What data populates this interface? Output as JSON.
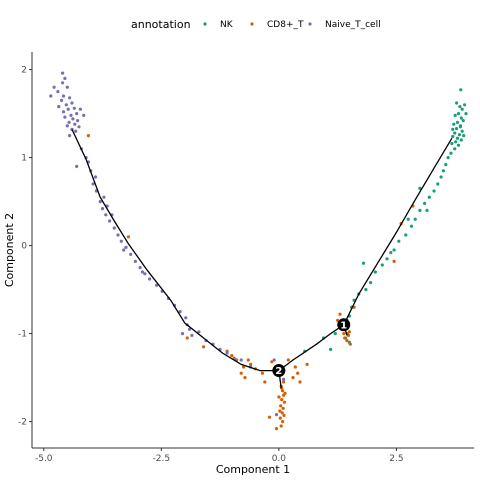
{
  "chart_data": {
    "type": "scatter",
    "xlabel": "Component 1",
    "ylabel": "Component 2",
    "xlim": [
      -5.25,
      4.15
    ],
    "ylim": [
      -2.3,
      2.2
    ],
    "x_ticks": [
      -5.0,
      -2.5,
      0.0,
      2.5
    ],
    "x_tick_labels": [
      "-5.0",
      "-2.5",
      "0.0",
      "2.5"
    ],
    "y_ticks": [
      -2,
      -1,
      0,
      1,
      2
    ],
    "y_tick_labels": [
      "-2",
      "-1",
      "0",
      "1",
      "2"
    ],
    "grid": false,
    "legend": {
      "title": "annotation",
      "placement": "top",
      "entries": [
        {
          "label": "NK",
          "color": "#1b9e77"
        },
        {
          "label": "CD8+_T",
          "color": "#d95f02"
        },
        {
          "label": "Naive_T_cell",
          "color": "#7570b3"
        }
      ]
    },
    "series": [
      {
        "name": "NK",
        "color": "#1b9e77",
        "points": [
          [
            3.78,
            1.62
          ],
          [
            3.85,
            1.58
          ],
          [
            3.9,
            1.55
          ],
          [
            3.82,
            1.5
          ],
          [
            3.75,
            1.48
          ],
          [
            3.88,
            1.45
          ],
          [
            3.92,
            1.42
          ],
          [
            3.8,
            1.4
          ],
          [
            3.72,
            1.38
          ],
          [
            3.86,
            1.36
          ],
          [
            3.78,
            1.33
          ],
          [
            3.9,
            1.3
          ],
          [
            3.74,
            1.28
          ],
          [
            3.84,
            1.26
          ],
          [
            3.7,
            1.24
          ],
          [
            3.8,
            1.22
          ],
          [
            3.88,
            1.2
          ],
          [
            3.76,
            1.18
          ],
          [
            3.68,
            1.16
          ],
          [
            3.82,
            1.14
          ],
          [
            3.74,
            1.1
          ],
          [
            3.86,
            1.35
          ],
          [
            3.95,
            1.6
          ],
          [
            3.98,
            1.5
          ],
          [
            3.87,
            1.77
          ],
          [
            3.7,
            1.32
          ],
          [
            3.93,
            1.25
          ],
          [
            3.66,
            1.05
          ],
          [
            3.6,
            1.0
          ],
          [
            3.55,
            0.92
          ],
          [
            3.5,
            0.85
          ],
          [
            3.45,
            0.78
          ],
          [
            3.38,
            0.7
          ],
          [
            3.3,
            0.62
          ],
          [
            3.2,
            0.55
          ],
          [
            3.1,
            0.48
          ],
          [
            3.0,
            0.4
          ],
          [
            2.9,
            0.3
          ],
          [
            2.82,
            0.22
          ],
          [
            2.7,
            0.12
          ],
          [
            2.55,
            0.05
          ],
          [
            2.45,
            -0.05
          ],
          [
            2.3,
            -0.15
          ],
          [
            2.2,
            -0.22
          ],
          [
            2.05,
            -0.3
          ],
          [
            1.95,
            -0.42
          ],
          [
            1.85,
            -0.5
          ],
          [
            1.7,
            -0.55
          ],
          [
            1.6,
            -0.62
          ],
          [
            1.55,
            -0.7
          ],
          [
            1.5,
            -0.8
          ],
          [
            1.45,
            -0.85
          ],
          [
            1.4,
            -0.92
          ],
          [
            1.46,
            -1.0
          ],
          [
            1.42,
            -1.05
          ],
          [
            1.5,
            -1.1
          ],
          [
            1.2,
            -1.0
          ],
          [
            0.95,
            -1.05
          ],
          [
            0.55,
            -1.2
          ],
          [
            1.1,
            -1.18
          ],
          [
            3.0,
            0.65
          ],
          [
            2.75,
            0.3
          ],
          [
            2.38,
            -0.08
          ],
          [
            1.8,
            -0.2
          ],
          [
            3.15,
            0.4
          ]
        ]
      },
      {
        "name": "CD8+_T",
        "color": "#d95f02",
        "points": [
          [
            0.05,
            -1.6
          ],
          [
            0.08,
            -1.65
          ],
          [
            0.1,
            -1.7
          ],
          [
            0.06,
            -1.75
          ],
          [
            0.12,
            -1.78
          ],
          [
            0.04,
            -1.82
          ],
          [
            0.09,
            -1.85
          ],
          [
            0.02,
            -1.88
          ],
          [
            0.07,
            -1.9
          ],
          [
            0.11,
            -1.93
          ],
          [
            0.03,
            -1.96
          ],
          [
            0.08,
            -2.0
          ],
          [
            0.05,
            -2.05
          ],
          [
            -0.05,
            -2.08
          ],
          [
            0.1,
            -1.55
          ],
          [
            0.13,
            -1.68
          ],
          [
            0.0,
            -1.72
          ],
          [
            0.06,
            -1.62
          ],
          [
            -0.35,
            -1.45
          ],
          [
            -0.5,
            -1.4
          ],
          [
            -0.6,
            -1.35
          ],
          [
            -0.75,
            -1.38
          ],
          [
            -0.8,
            -1.45
          ],
          [
            -0.72,
            -1.5
          ],
          [
            -0.65,
            -1.3
          ],
          [
            -0.9,
            -1.3
          ],
          [
            -1.0,
            -1.25
          ],
          [
            -1.1,
            -1.2
          ],
          [
            -0.3,
            -1.55
          ],
          [
            0.3,
            -1.5
          ],
          [
            0.4,
            -1.45
          ],
          [
            0.45,
            -1.55
          ],
          [
            0.35,
            -1.38
          ],
          [
            0.2,
            -1.3
          ],
          [
            -0.15,
            -1.32
          ],
          [
            0.6,
            -1.35
          ],
          [
            1.42,
            -0.95
          ],
          [
            1.48,
            -1.02
          ],
          [
            1.4,
            -1.05
          ],
          [
            1.5,
            -0.98
          ],
          [
            1.45,
            -1.08
          ],
          [
            1.38,
            -1.0
          ],
          [
            1.52,
            -1.12
          ],
          [
            1.25,
            -0.85
          ],
          [
            1.3,
            -0.78
          ],
          [
            1.6,
            -0.7
          ],
          [
            2.6,
            0.25
          ],
          [
            2.85,
            0.45
          ],
          [
            2.45,
            -0.18
          ],
          [
            -1.95,
            -1.05
          ],
          [
            -1.6,
            -1.15
          ],
          [
            -3.2,
            0.1
          ],
          [
            -4.05,
            1.25
          ],
          [
            -0.2,
            -1.95
          ]
        ]
      },
      {
        "name": "Naive_T_cell",
        "color": "#7570b3",
        "points": [
          [
            -4.55,
            1.9
          ],
          [
            -4.6,
            1.85
          ],
          [
            -4.5,
            1.8
          ],
          [
            -4.7,
            1.75
          ],
          [
            -4.58,
            1.7
          ],
          [
            -4.45,
            1.68
          ],
          [
            -4.62,
            1.65
          ],
          [
            -4.4,
            1.62
          ],
          [
            -4.52,
            1.6
          ],
          [
            -4.68,
            1.58
          ],
          [
            -4.35,
            1.56
          ],
          [
            -4.48,
            1.55
          ],
          [
            -4.58,
            1.52
          ],
          [
            -4.3,
            1.5
          ],
          [
            -4.42,
            1.48
          ],
          [
            -4.55,
            1.46
          ],
          [
            -4.38,
            1.44
          ],
          [
            -4.28,
            1.42
          ],
          [
            -4.46,
            1.4
          ],
          [
            -4.34,
            1.38
          ],
          [
            -4.5,
            1.36
          ],
          [
            -4.25,
            1.35
          ],
          [
            -4.4,
            1.32
          ],
          [
            -4.32,
            1.3
          ],
          [
            -4.78,
            1.8
          ],
          [
            -4.85,
            1.7
          ],
          [
            -4.22,
            1.55
          ],
          [
            -4.15,
            1.48
          ],
          [
            -4.6,
            1.96
          ],
          [
            -4.45,
            1.25
          ],
          [
            -4.2,
            1.1
          ],
          [
            -4.1,
            1.0
          ],
          [
            -4.3,
            0.9
          ],
          [
            -4.0,
            0.85
          ],
          [
            -3.95,
            0.7
          ],
          [
            -3.88,
            0.62
          ],
          [
            -3.8,
            0.5
          ],
          [
            -3.75,
            0.42
          ],
          [
            -3.68,
            0.35
          ],
          [
            -3.6,
            0.28
          ],
          [
            -3.5,
            0.2
          ],
          [
            -3.42,
            0.12
          ],
          [
            -3.35,
            0.05
          ],
          [
            -3.25,
            -0.02
          ],
          [
            -3.15,
            -0.1
          ],
          [
            -3.05,
            -0.18
          ],
          [
            -2.95,
            -0.25
          ],
          [
            -2.85,
            -0.32
          ],
          [
            -2.75,
            -0.38
          ],
          [
            -2.6,
            -0.45
          ],
          [
            -2.48,
            -0.52
          ],
          [
            -2.35,
            -0.6
          ],
          [
            -2.22,
            -0.68
          ],
          [
            -2.1,
            -0.75
          ],
          [
            -1.98,
            -0.82
          ],
          [
            -1.9,
            -0.95
          ],
          [
            -1.85,
            -1.02
          ],
          [
            -1.7,
            -0.98
          ],
          [
            -1.55,
            -1.08
          ],
          [
            -1.4,
            -1.12
          ],
          [
            -1.25,
            -1.18
          ],
          [
            -1.1,
            -1.22
          ],
          [
            -0.95,
            -1.28
          ],
          [
            -0.8,
            -1.3
          ],
          [
            -0.6,
            -1.38
          ],
          [
            -3.72,
            0.55
          ],
          [
            -3.55,
            0.35
          ],
          [
            -3.3,
            -0.05
          ],
          [
            -2.9,
            -0.3
          ],
          [
            -4.05,
            0.95
          ],
          [
            -0.1,
            -1.3
          ],
          [
            -0.05,
            -1.92
          ],
          [
            0.1,
            -1.52
          ],
          [
            -2.05,
            -1.0
          ],
          [
            -1.95,
            -0.9
          ],
          [
            -3.65,
            0.45
          ],
          [
            -3.9,
            0.78
          ]
        ]
      }
    ],
    "trajectory": {
      "color": "#000000",
      "trunk": [
        [
          -4.4,
          1.32
        ],
        [
          -4.1,
          0.98
        ],
        [
          -3.8,
          0.55
        ],
        [
          -3.5,
          0.28
        ],
        [
          -3.2,
          0.02
        ],
        [
          -2.8,
          -0.28
        ],
        [
          -2.3,
          -0.62
        ],
        [
          -2.0,
          -0.88
        ],
        [
          -1.6,
          -1.05
        ],
        [
          -1.2,
          -1.22
        ],
        [
          -0.8,
          -1.35
        ],
        [
          -0.4,
          -1.42
        ],
        [
          0.0,
          -1.42
        ]
      ],
      "branch_to_root": [
        [
          0.0,
          -1.42
        ],
        [
          0.05,
          -1.62
        ]
      ],
      "connector": [
        [
          0.0,
          -1.42
        ],
        [
          0.3,
          -1.3
        ],
        [
          0.8,
          -1.12
        ],
        [
          1.1,
          -1.0
        ],
        [
          1.38,
          -0.9
        ]
      ],
      "up_branch": [
        [
          1.38,
          -0.9
        ],
        [
          1.7,
          -0.55
        ],
        [
          2.1,
          -0.2
        ],
        [
          2.5,
          0.15
        ],
        [
          2.9,
          0.52
        ],
        [
          3.3,
          0.88
        ],
        [
          3.68,
          1.22
        ]
      ],
      "down_branch": [
        [
          1.38,
          -0.9
        ],
        [
          1.45,
          -1.02
        ]
      ],
      "branch_points": [
        {
          "label": "1",
          "x": 1.38,
          "y": -0.9
        },
        {
          "label": "2",
          "x": 0.0,
          "y": -1.42
        }
      ]
    }
  }
}
